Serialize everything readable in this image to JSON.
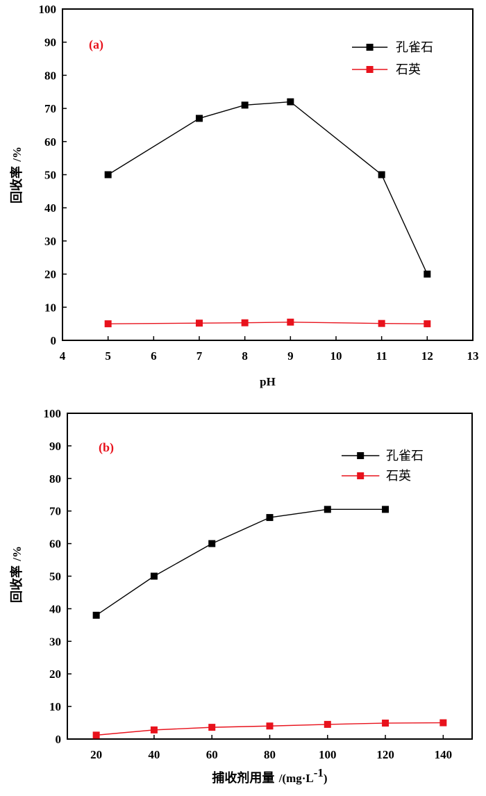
{
  "chart_data": [
    {
      "type": "line",
      "panel_label": "(a)",
      "xlabel": "pH",
      "ylabel": "回收率",
      "ylabel_unit": "/%",
      "xlim": [
        4,
        13
      ],
      "ylim": [
        0,
        100
      ],
      "xticks": [
        4,
        5,
        6,
        7,
        8,
        9,
        10,
        11,
        12,
        13
      ],
      "yticks": [
        0,
        10,
        20,
        30,
        40,
        50,
        60,
        70,
        80,
        90,
        100
      ],
      "legend_position": "top-right",
      "series": [
        {
          "name": "孔雀石",
          "color": "#000000",
          "x": [
            5,
            7,
            8,
            9,
            11,
            12
          ],
          "y": [
            50,
            67,
            71,
            72,
            50,
            20
          ]
        },
        {
          "name": "石英",
          "color": "#e8121c",
          "x": [
            5,
            7,
            8,
            9,
            11,
            12
          ],
          "y": [
            5,
            5.2,
            5.3,
            5.5,
            5.1,
            5
          ]
        }
      ]
    },
    {
      "type": "line",
      "panel_label": "(b)",
      "xlabel": "捕收剂用量",
      "xlabel_unit": "/(mg·L",
      "xlabel_sup": "-1",
      "xlabel_close": ")",
      "ylabel": "回收率",
      "ylabel_unit": "/%",
      "xlim": [
        10,
        150
      ],
      "ylim": [
        0,
        100
      ],
      "xticks": [
        20,
        40,
        60,
        80,
        100,
        120,
        140
      ],
      "yticks": [
        0,
        10,
        20,
        30,
        40,
        50,
        60,
        70,
        80,
        90,
        100
      ],
      "legend_position": "top-right",
      "series": [
        {
          "name": "孔雀石",
          "color": "#000000",
          "x": [
            20,
            40,
            60,
            80,
            100,
            120
          ],
          "y": [
            38,
            50,
            60,
            68,
            70.5,
            70.5
          ]
        },
        {
          "name": "石英",
          "color": "#e8121c",
          "x": [
            20,
            40,
            60,
            80,
            100,
            120,
            140
          ],
          "y": [
            1.2,
            2.8,
            3.6,
            4,
            4.5,
            4.9,
            5
          ]
        }
      ]
    }
  ]
}
